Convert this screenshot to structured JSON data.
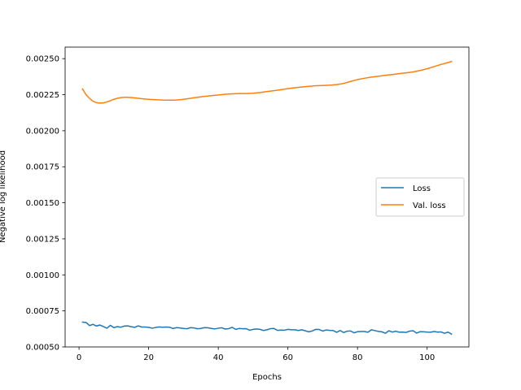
{
  "chart_data": {
    "type": "line",
    "xlabel": "Epochs",
    "ylabel": "Negative log likelihood",
    "xlim": [
      -4,
      112
    ],
    "ylim": [
      0.0005,
      0.00258
    ],
    "xticks": [
      0,
      20,
      40,
      60,
      80,
      100
    ],
    "yticks": [
      0.0005,
      0.00075,
      0.001,
      0.00125,
      0.0015,
      0.00175,
      0.002,
      0.00225,
      0.0025
    ],
    "ytick_labels": [
      "0.00050",
      "0.00075",
      "0.00100",
      "0.00125",
      "0.00150",
      "0.00175",
      "0.00200",
      "0.00225",
      "0.00250"
    ],
    "legend_position": "center-right",
    "series": [
      {
        "name": "Loss",
        "color": "#1f77b4",
        "x": [
          1,
          2,
          3,
          4,
          5,
          6,
          7,
          8,
          9,
          10,
          11,
          12,
          13,
          14,
          15,
          16,
          17,
          18,
          19,
          20,
          21,
          22,
          23,
          24,
          25,
          26,
          27,
          28,
          29,
          30,
          31,
          32,
          33,
          34,
          35,
          36,
          37,
          38,
          39,
          40,
          41,
          42,
          43,
          44,
          45,
          46,
          47,
          48,
          49,
          50,
          51,
          52,
          53,
          54,
          55,
          56,
          57,
          58,
          59,
          60,
          61,
          62,
          63,
          64,
          65,
          66,
          67,
          68,
          69,
          70,
          71,
          72,
          73,
          74,
          75,
          76,
          77,
          78,
          79,
          80,
          81,
          82,
          83,
          84,
          85,
          86,
          87,
          88,
          89,
          90,
          91,
          92,
          93,
          94,
          95,
          96,
          97,
          98,
          99,
          100,
          101,
          102,
          103,
          104,
          105,
          106,
          107
        ],
        "y": [
          0.000672,
          0.00067,
          0.000648,
          0.000657,
          0.000645,
          0.000652,
          0.000641,
          0.00063,
          0.00065,
          0.000634,
          0.000641,
          0.000637,
          0.000645,
          0.000646,
          0.00064,
          0.000636,
          0.000646,
          0.000638,
          0.000638,
          0.000636,
          0.00063,
          0.000635,
          0.000639,
          0.000637,
          0.000638,
          0.000637,
          0.000628,
          0.000634,
          0.000632,
          0.000628,
          0.000626,
          0.000634,
          0.000632,
          0.000626,
          0.000628,
          0.000634,
          0.000633,
          0.000628,
          0.000625,
          0.00063,
          0.000633,
          0.000624,
          0.000627,
          0.000636,
          0.000622,
          0.000628,
          0.000626,
          0.000627,
          0.000616,
          0.000622,
          0.000625,
          0.000622,
          0.000614,
          0.000619,
          0.000627,
          0.000628,
          0.000615,
          0.000617,
          0.000616,
          0.000622,
          0.000619,
          0.000619,
          0.000614,
          0.000619,
          0.000612,
          0.000605,
          0.000611,
          0.000622,
          0.000621,
          0.00061,
          0.000618,
          0.000615,
          0.000614,
          0.000602,
          0.000614,
          0.0006,
          0.000609,
          0.000611,
          0.000598,
          0.000606,
          0.000607,
          0.000607,
          0.000602,
          0.000619,
          0.000613,
          0.000608,
          0.000605,
          0.000595,
          0.000612,
          0.000603,
          0.000609,
          0.000602,
          0.000603,
          0.000601,
          0.00061,
          0.000612,
          0.000596,
          0.000606,
          0.000605,
          0.000603,
          0.000602,
          0.000607,
          0.000603,
          0.000604,
          0.000595,
          0.000603,
          0.000589
        ]
      },
      {
        "name": "Val. loss",
        "color": "#ff7f0e",
        "x": [
          1,
          2,
          3,
          4,
          5,
          6,
          7,
          8,
          9,
          10,
          11,
          12,
          13,
          14,
          15,
          16,
          17,
          18,
          19,
          20,
          22,
          24,
          26,
          28,
          30,
          32,
          34,
          36,
          38,
          40,
          42,
          44,
          46,
          48,
          50,
          52,
          54,
          56,
          58,
          60,
          62,
          64,
          66,
          68,
          70,
          72,
          74,
          76,
          78,
          80,
          82,
          84,
          86,
          88,
          90,
          92,
          94,
          96,
          98,
          100,
          102,
          104,
          106,
          107
        ],
        "y": [
          0.00229,
          0.00225,
          0.002225,
          0.002205,
          0.002195,
          0.002192,
          0.002193,
          0.0022,
          0.002208,
          0.002218,
          0.002225,
          0.00223,
          0.002232,
          0.002232,
          0.00223,
          0.002228,
          0.002225,
          0.002222,
          0.00222,
          0.002218,
          0.002215,
          0.002213,
          0.002212,
          0.002213,
          0.002218,
          0.002225,
          0.002232,
          0.002238,
          0.002243,
          0.002248,
          0.002253,
          0.002256,
          0.002258,
          0.002258,
          0.00226,
          0.002265,
          0.002272,
          0.002278,
          0.002285,
          0.002292,
          0.002298,
          0.002303,
          0.002308,
          0.002312,
          0.002314,
          0.002316,
          0.00232,
          0.002328,
          0.002342,
          0.002355,
          0.002364,
          0.002372,
          0.002378,
          0.002385,
          0.00239,
          0.002396,
          0.002402,
          0.002408,
          0.002418,
          0.00243,
          0.002445,
          0.00246,
          0.002473,
          0.00248
        ]
      }
    ]
  }
}
